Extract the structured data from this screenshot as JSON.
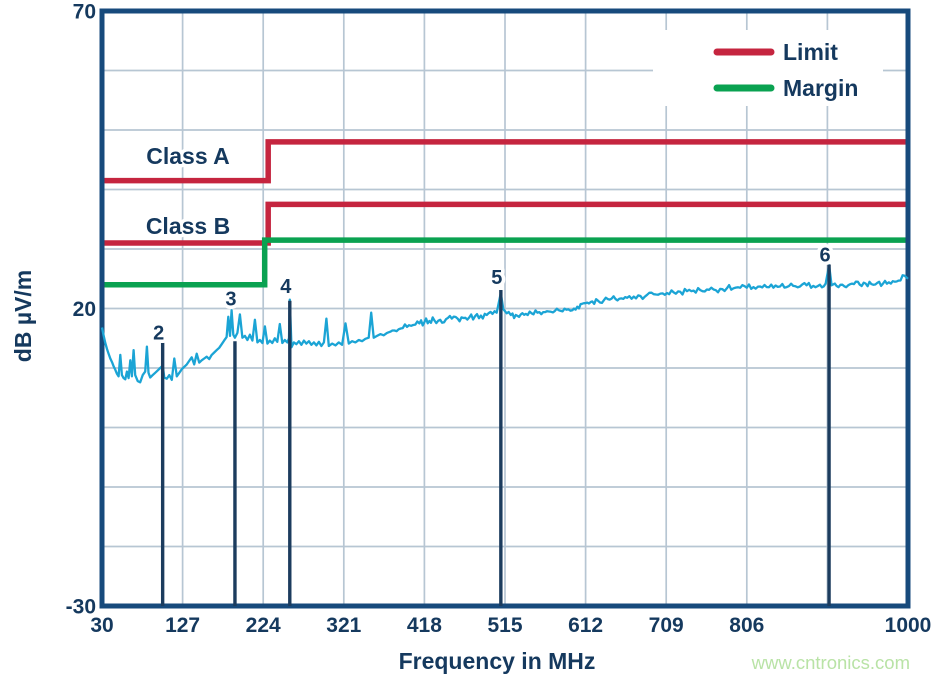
{
  "watermark": {
    "text": "www.cntronics.com",
    "color": "#b9e3a6"
  },
  "palette": {
    "text_navy": "#15395e",
    "border_navy": "#174a7c",
    "marker_navy": "#1c3c5e",
    "gridline": "#b7c6d3",
    "limit_red": "#c5253f",
    "margin_green": "#0aa251",
    "trace_cyan": "#1ba4d5",
    "background": "#ffffff"
  },
  "chart_data": {
    "type": "line",
    "title": "",
    "xlabel": "Frequency in MHz",
    "ylabel": "dB µV/m",
    "xlim": [
      30,
      1000
    ],
    "ylim": [
      -30,
      70
    ],
    "x_gridlines_mhz": [
      30,
      127,
      224,
      321,
      418,
      515,
      612,
      709,
      806,
      903,
      1000
    ],
    "x_tick_labels": [
      {
        "value": 30,
        "label": "30"
      },
      {
        "value": 127,
        "label": "127"
      },
      {
        "value": 224,
        "label": "224"
      },
      {
        "value": 321,
        "label": "321"
      },
      {
        "value": 418,
        "label": "418"
      },
      {
        "value": 515,
        "label": "515"
      },
      {
        "value": 612,
        "label": "612"
      },
      {
        "value": 709,
        "label": "709"
      },
      {
        "value": 806,
        "label": "806"
      },
      {
        "value": 1000,
        "label": "1000"
      }
    ],
    "y_grid_step_db": 10,
    "y_tick_labels": [
      {
        "value": 70,
        "label": "70"
      },
      {
        "value": 20,
        "label": "20"
      },
      {
        "value": -30,
        "label": "-30"
      }
    ],
    "legend": {
      "position": "top-right",
      "entries": [
        {
          "label": "Limit",
          "color": "#c5253f"
        },
        {
          "label": "Margin",
          "color": "#0aa251"
        }
      ]
    },
    "series": [
      {
        "name": "class-a-limit",
        "label": "Class A",
        "type": "step",
        "color": "#c5253f",
        "points": [
          [
            30,
            41.5
          ],
          [
            230,
            41.5
          ],
          [
            230,
            48
          ],
          [
            1000,
            48
          ]
        ]
      },
      {
        "name": "class-b-limit",
        "label": "Class B",
        "type": "step",
        "color": "#c5253f",
        "points": [
          [
            30,
            31
          ],
          [
            230,
            31
          ],
          [
            230,
            37.5
          ],
          [
            1000,
            37.5
          ]
        ]
      },
      {
        "name": "margin",
        "label": "",
        "type": "step",
        "color": "#0aa251",
        "points": [
          [
            30,
            24
          ],
          [
            230,
            24
          ],
          [
            230,
            31.5
          ],
          [
            1000,
            31.5
          ]
        ]
      },
      {
        "name": "measured-emissions",
        "label": "",
        "type": "trace",
        "color": "#1ba4d5",
        "noise_db": 0.55,
        "points": [
          [
            30,
            16.8
          ],
          [
            32,
            15.4
          ],
          [
            34,
            14.2
          ],
          [
            36,
            13.2
          ],
          [
            38,
            12.4
          ],
          [
            40,
            11.6
          ],
          [
            42,
            11.0
          ],
          [
            44,
            10.3
          ],
          [
            46,
            9.7
          ],
          [
            48,
            9.0
          ],
          [
            50,
            8.6
          ],
          [
            52,
            12.2
          ],
          [
            54,
            8.8
          ],
          [
            56,
            8.3
          ],
          [
            58,
            8.1
          ],
          [
            60,
            9.4
          ],
          [
            62,
            8.3
          ],
          [
            64,
            11.3
          ],
          [
            66,
            8.6
          ],
          [
            68,
            13.0
          ],
          [
            70,
            8.8
          ],
          [
            73,
            7.8
          ],
          [
            76,
            7.6
          ],
          [
            79,
            8.8
          ],
          [
            82,
            9.4
          ],
          [
            84,
            13.6
          ],
          [
            86,
            9.2
          ],
          [
            88,
            8.4
          ],
          [
            91,
            8.8
          ],
          [
            94,
            9.2
          ],
          [
            97,
            9.6
          ],
          [
            100,
            10.0
          ],
          [
            103,
            10.4
          ],
          [
            105,
            8.4
          ],
          [
            108,
            8.2
          ],
          [
            111,
            8.8
          ],
          [
            114,
            8.0
          ],
          [
            117,
            11.6
          ],
          [
            120,
            8.6
          ],
          [
            123,
            9.2
          ],
          [
            126,
            9.8
          ],
          [
            129,
            10.2
          ],
          [
            132,
            10.6
          ],
          [
            135,
            11.2
          ],
          [
            138,
            11.8
          ],
          [
            141,
            10.6
          ],
          [
            144,
            12.4
          ],
          [
            147,
            10.9
          ],
          [
            150,
            11.3
          ],
          [
            153,
            11.6
          ],
          [
            156,
            11.9
          ],
          [
            159,
            11.5
          ],
          [
            162,
            12.2
          ],
          [
            165,
            12.6
          ],
          [
            168,
            13.0
          ],
          [
            171,
            13.4
          ],
          [
            174,
            14.0
          ],
          [
            177,
            14.6
          ],
          [
            180,
            15.2
          ],
          [
            182,
            18.6
          ],
          [
            184,
            15.4
          ],
          [
            186,
            19.7
          ],
          [
            188,
            15.6
          ],
          [
            190,
            15.1
          ],
          [
            193,
            15.9
          ],
          [
            196,
            19.0
          ],
          [
            199,
            15.1
          ],
          [
            202,
            15.4
          ],
          [
            205,
            14.7
          ],
          [
            208,
            15.6
          ],
          [
            211,
            14.6
          ],
          [
            214,
            18.1
          ],
          [
            217,
            14.3
          ],
          [
            220,
            14.7
          ],
          [
            223,
            14.2
          ],
          [
            226,
            17.0
          ],
          [
            229,
            14.1
          ],
          [
            232,
            14.6
          ],
          [
            235,
            14.2
          ],
          [
            238,
            15.0
          ],
          [
            241,
            14.4
          ],
          [
            244,
            17.4
          ],
          [
            247,
            14.2
          ],
          [
            250,
            14.7
          ],
          [
            253,
            14.3
          ],
          [
            255,
            15.0
          ],
          [
            256,
            21.5
          ],
          [
            258,
            13.5
          ],
          [
            261,
            14.3
          ],
          [
            264,
            14.0
          ],
          [
            267,
            14.5
          ],
          [
            270,
            13.9
          ],
          [
            273,
            14.6
          ],
          [
            276,
            14.1
          ],
          [
            279,
            14.5
          ],
          [
            282,
            13.9
          ],
          [
            285,
            14.3
          ],
          [
            288,
            13.8
          ],
          [
            291,
            14.4
          ],
          [
            294,
            13.7
          ],
          [
            297,
            14.3
          ],
          [
            300,
            18.3
          ],
          [
            303,
            13.7
          ],
          [
            307,
            14.1
          ],
          [
            311,
            13.8
          ],
          [
            315,
            14.3
          ],
          [
            319,
            13.9
          ],
          [
            323,
            17.5
          ],
          [
            327,
            14.1
          ],
          [
            331,
            14.5
          ],
          [
            335,
            14.3
          ],
          [
            339,
            14.7
          ],
          [
            343,
            14.5
          ],
          [
            347,
            14.9
          ],
          [
            351,
            15.1
          ],
          [
            354,
            19.3
          ],
          [
            357,
            15.1
          ],
          [
            361,
            15.4
          ],
          [
            365,
            15.7
          ],
          [
            369,
            15.5
          ],
          [
            373,
            15.9
          ],
          [
            377,
            16.1
          ],
          [
            382,
            16.3
          ],
          [
            387,
            16.5
          ],
          [
            392,
            16.7
          ],
          [
            397,
            16.9
          ],
          [
            402,
            17.1
          ],
          [
            407,
            17.3
          ],
          [
            412,
            17.5
          ],
          [
            418,
            17.7
          ],
          [
            424,
            17.9
          ],
          [
            430,
            18.0
          ],
          [
            437,
            18.1
          ],
          [
            444,
            18.2
          ],
          [
            451,
            18.3
          ],
          [
            458,
            18.3
          ],
          [
            465,
            18.4
          ],
          [
            472,
            18.5
          ],
          [
            479,
            18.7
          ],
          [
            486,
            18.8
          ],
          [
            493,
            18.9
          ],
          [
            500,
            19.1
          ],
          [
            505,
            19.3
          ],
          [
            510,
            22.6
          ],
          [
            513,
            19.9
          ],
          [
            517,
            19.2
          ],
          [
            522,
            18.9
          ],
          [
            528,
            18.9
          ],
          [
            534,
            19.0
          ],
          [
            540,
            19.1
          ],
          [
            547,
            19.2
          ],
          [
            554,
            19.3
          ],
          [
            561,
            19.4
          ],
          [
            568,
            19.5
          ],
          [
            575,
            19.6
          ],
          [
            582,
            19.6
          ],
          [
            589,
            19.8
          ],
          [
            596,
            19.7
          ],
          [
            602,
            20.3
          ],
          [
            608,
            20.8
          ],
          [
            614,
            21.0
          ],
          [
            620,
            21.2
          ],
          [
            627,
            21.3
          ],
          [
            634,
            21.4
          ],
          [
            641,
            21.5
          ],
          [
            648,
            21.6
          ],
          [
            655,
            21.7
          ],
          [
            662,
            21.8
          ],
          [
            670,
            22.0
          ],
          [
            678,
            22.1
          ],
          [
            686,
            22.3
          ],
          [
            694,
            22.4
          ],
          [
            702,
            22.5
          ],
          [
            710,
            22.6
          ],
          [
            718,
            22.7
          ],
          [
            726,
            22.8
          ],
          [
            734,
            22.9
          ],
          [
            742,
            23.0
          ],
          [
            750,
            23.1
          ],
          [
            758,
            23.2
          ],
          [
            766,
            23.2
          ],
          [
            774,
            23.3
          ],
          [
            782,
            23.4
          ],
          [
            790,
            23.4
          ],
          [
            798,
            23.5
          ],
          [
            806,
            23.5
          ],
          [
            814,
            23.6
          ],
          [
            822,
            23.7
          ],
          [
            830,
            23.6
          ],
          [
            838,
            23.5
          ],
          [
            846,
            23.7
          ],
          [
            854,
            23.6
          ],
          [
            862,
            23.8
          ],
          [
            870,
            23.7
          ],
          [
            878,
            23.9
          ],
          [
            886,
            23.8
          ],
          [
            894,
            24.0
          ],
          [
            901,
            24.2
          ],
          [
            905,
            27.3
          ],
          [
            908,
            23.9
          ],
          [
            914,
            23.8
          ],
          [
            921,
            24.0
          ],
          [
            928,
            23.9
          ],
          [
            935,
            24.1
          ],
          [
            942,
            24.0
          ],
          [
            949,
            24.2
          ],
          [
            956,
            24.1
          ],
          [
            963,
            24.3
          ],
          [
            970,
            24.2
          ],
          [
            977,
            24.4
          ],
          [
            984,
            24.5
          ],
          [
            991,
            24.7
          ],
          [
            996,
            25.5
          ],
          [
            1000,
            25.0
          ]
        ]
      }
    ],
    "markers": [
      {
        "label": "2",
        "freq_mhz": 103,
        "line_top_db": 14.3,
        "label_y_db": 14.8
      },
      {
        "label": "3",
        "freq_mhz": 190,
        "line_top_db": 14.5,
        "label_y_db": 20.5
      },
      {
        "label": "4",
        "freq_mhz": 256,
        "line_top_db": 21.3,
        "label_y_db": 22.6
      },
      {
        "label": "5",
        "freq_mhz": 510,
        "line_top_db": 23.1,
        "label_y_db": 24.1
      },
      {
        "label": "6",
        "freq_mhz": 905,
        "line_top_db": 27.4,
        "label_y_db": 27.9
      }
    ]
  }
}
